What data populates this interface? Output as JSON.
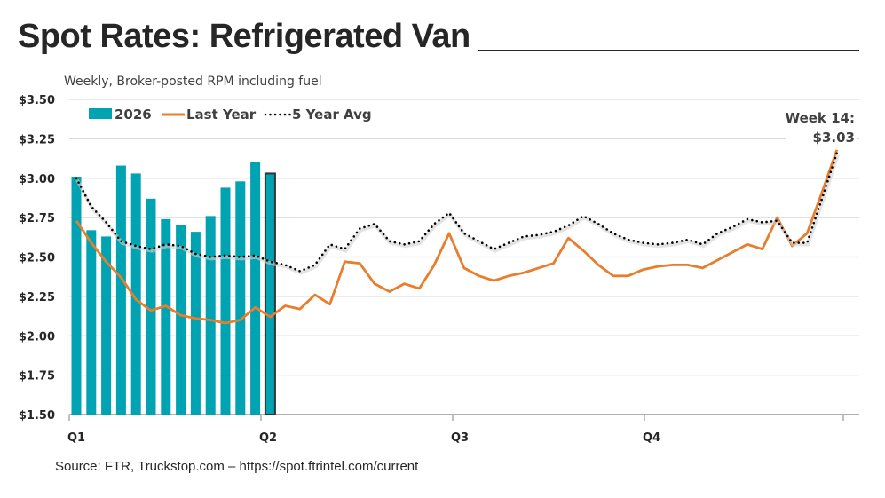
{
  "chart_data": {
    "type": "bar",
    "title": "Spot Rates: Refrigerated Van",
    "subtitle": "Weekly, Broker-posted RPM including fuel",
    "source": "Source: FTR, Truckstop.com – https://spot.ftrintel.com/current",
    "ylim": [
      1.5,
      3.5
    ],
    "yticks": [
      "$1.50",
      "$1.75",
      "$2.00",
      "$2.25",
      "$2.50",
      "$2.75",
      "$3.00",
      "$3.25",
      "$3.50"
    ],
    "xticks": [
      "Q1",
      "Q2",
      "Q3",
      "Q4"
    ],
    "weeks": 52,
    "grid": true,
    "legend_position": "top-left",
    "series": [
      {
        "name": "2026",
        "type": "bar",
        "color": "#00A3B1",
        "values": [
          3.01,
          2.67,
          2.63,
          3.08,
          3.03,
          2.87,
          2.74,
          2.7,
          2.66,
          2.76,
          2.94,
          2.98,
          3.1,
          3.03
        ]
      },
      {
        "name": "Last Year",
        "type": "line",
        "color": "#E87D2E",
        "values": [
          2.73,
          2.59,
          2.47,
          2.37,
          2.23,
          2.16,
          2.19,
          2.13,
          2.11,
          2.1,
          2.08,
          2.1,
          2.18,
          2.12,
          2.19,
          2.17,
          2.26,
          2.2,
          2.47,
          2.46,
          2.33,
          2.28,
          2.33,
          2.3,
          2.45,
          2.65,
          2.43,
          2.38,
          2.35,
          2.38,
          2.4,
          2.43,
          2.46,
          2.62,
          2.54,
          2.45,
          2.38,
          2.38,
          2.42,
          2.44,
          2.45,
          2.45,
          2.43,
          2.48,
          2.53,
          2.58,
          2.55,
          2.75,
          2.57,
          2.65,
          2.91,
          3.18
        ]
      },
      {
        "name": "5 Year Avg",
        "type": "line-dotted",
        "color": "#000000",
        "values": [
          3.0,
          2.82,
          2.72,
          2.6,
          2.57,
          2.55,
          2.58,
          2.57,
          2.52,
          2.5,
          2.51,
          2.5,
          2.51,
          2.47,
          2.45,
          2.41,
          2.45,
          2.58,
          2.55,
          2.68,
          2.71,
          2.6,
          2.58,
          2.6,
          2.71,
          2.78,
          2.65,
          2.6,
          2.55,
          2.59,
          2.63,
          2.64,
          2.66,
          2.7,
          2.76,
          2.71,
          2.65,
          2.61,
          2.59,
          2.58,
          2.59,
          2.61,
          2.58,
          2.65,
          2.69,
          2.74,
          2.72,
          2.73,
          2.59,
          2.59,
          2.87,
          3.16
        ]
      }
    ],
    "annotation": {
      "line1": "Week 14:",
      "line2": "$3.03",
      "week": 14
    }
  }
}
